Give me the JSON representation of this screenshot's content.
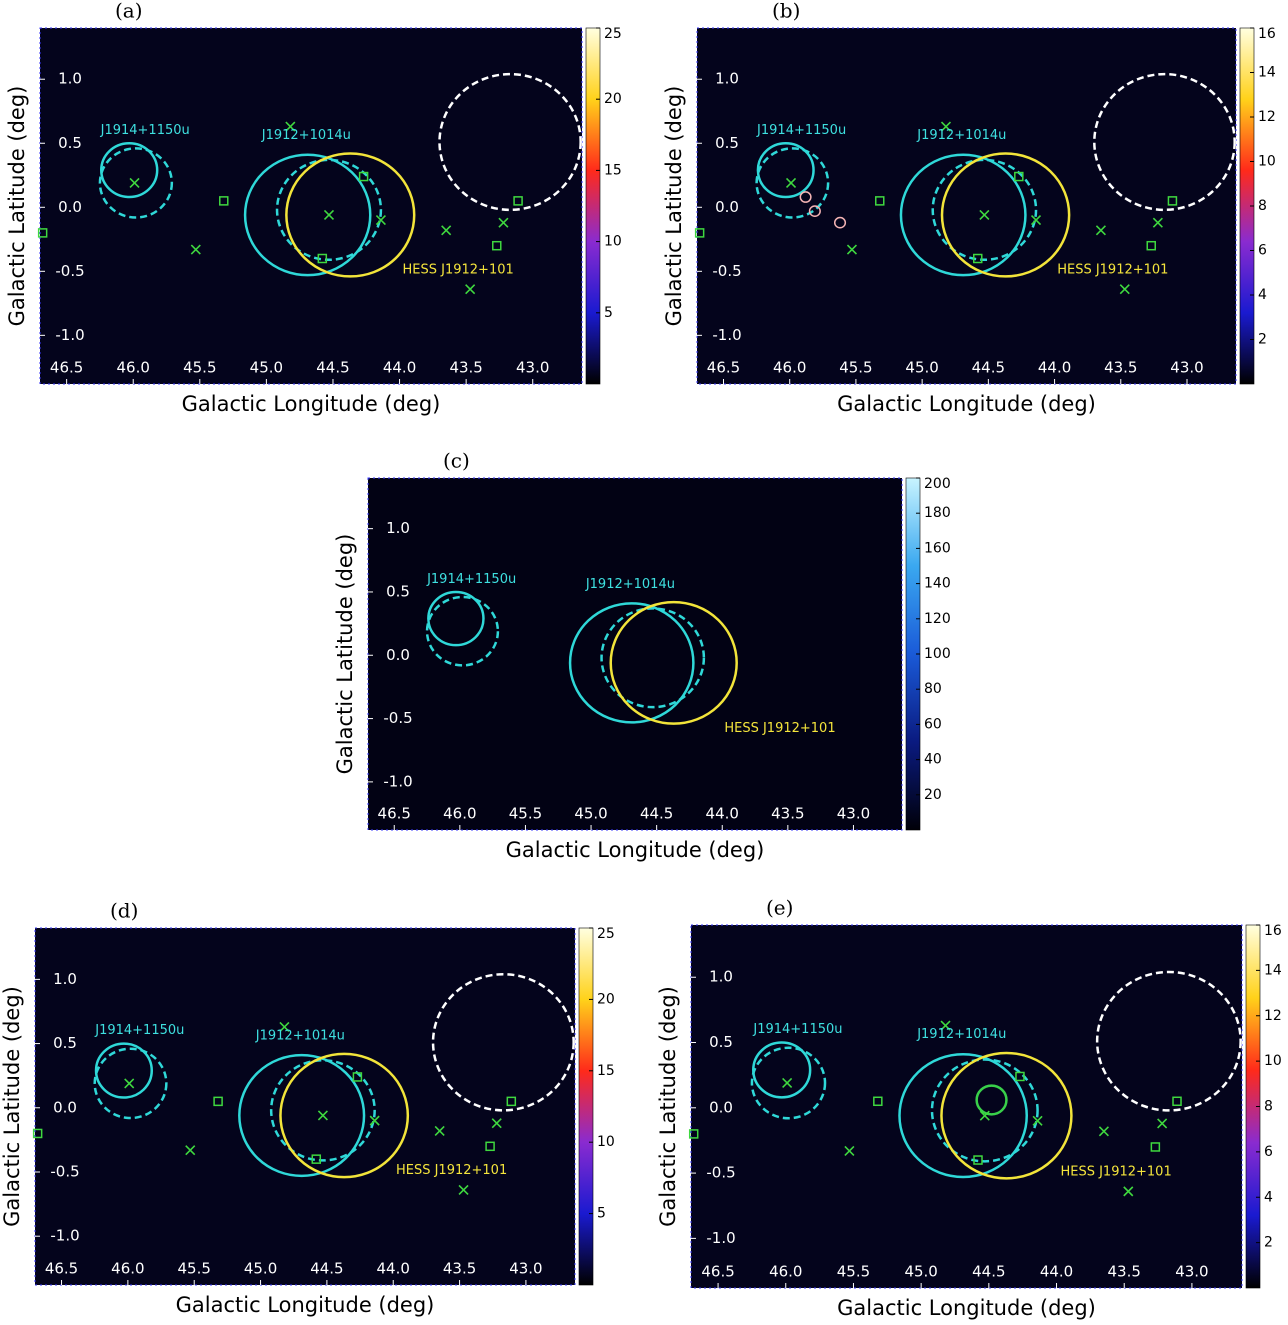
{
  "chart_data": [
    {
      "type": "heatmap",
      "panel_label": "(a)",
      "xlabel": "Galactic Longitude (deg)",
      "ylabel": "Galactic Latitude (deg)",
      "xlim": [
        46.7,
        42.63
      ],
      "ylim": [
        -1.38,
        1.4
      ],
      "xticks": [
        46.5,
        {
          "value": 46,
          "label": "46.0"
        },
        45.5,
        {
          "value": 45,
          "label": "45.0"
        },
        44.5,
        {
          "value": 44,
          "label": "44.0"
        },
        43.5,
        {
          "value": 43,
          "label": "43.0"
        }
      ],
      "yticks": [
        {
          "value": -1,
          "label": "-1.0"
        },
        -0.5,
        {
          "value": 0,
          "label": "0.0"
        },
        0.5,
        {
          "value": 1,
          "label": "1.0"
        }
      ],
      "clim": [
        0,
        25
      ],
      "cticks": [
        5,
        10,
        15,
        20,
        25
      ],
      "colormap": [
        "#000000",
        "#1a1ad0",
        "#8a2bd0",
        "#ff2a1a",
        "#ffd21a",
        "#ffffe0"
      ],
      "background": "#04041c",
      "circles": [
        {
          "l": 46.03,
          "b": 0.29,
          "r": 0.21,
          "color": "#2fd8d8",
          "dashed": false
        },
        {
          "l": 45.98,
          "b": 0.19,
          "r": 0.27,
          "color": "#2fd8d8",
          "dashed": true
        },
        {
          "l": 44.69,
          "b": -0.06,
          "r": 0.47,
          "color": "#2fd8d8",
          "dashed": false
        },
        {
          "l": 44.53,
          "b": -0.02,
          "r": 0.39,
          "color": "#2fd8d8",
          "dashed": true
        },
        {
          "l": 44.37,
          "b": -0.06,
          "r": 0.48,
          "color": "#f2e43a",
          "dashed": false
        },
        {
          "l": 43.17,
          "b": 0.51,
          "r": 0.53,
          "color": "#ffffff",
          "dashed": true
        }
      ],
      "crosses": {
        "l": [
          45.99,
          44.82,
          44.53,
          44.14,
          43.65,
          43.22,
          43.47,
          45.53
        ],
        "b": [
          0.19,
          0.63,
          -0.06,
          -0.1,
          -0.18,
          -0.12,
          -0.64,
          -0.33
        ],
        "color": "#3fd83f"
      },
      "squares": {
        "l": [
          45.32,
          44.27,
          44.58,
          43.11,
          43.27,
          46.68
        ],
        "b": [
          0.05,
          0.24,
          -0.4,
          0.05,
          -0.3,
          -0.2
        ],
        "color": "#3fd83f"
      },
      "annotations": [
        {
          "text": "J1914+1150u",
          "l": 45.91,
          "b": 0.6,
          "color": "#3ee0e0"
        },
        {
          "text": "J1912+1014u",
          "l": 44.7,
          "b": 0.56,
          "color": "#3ee0e0"
        },
        {
          "text": "HESS J1912+101",
          "l": 43.56,
          "b": -0.49,
          "color": "#f5e53c"
        }
      ]
    },
    {
      "type": "heatmap",
      "panel_label": "(b)",
      "xlabel": "Galactic Longitude (deg)",
      "ylabel": "Galactic Latitude (deg)",
      "xlim": [
        46.7,
        42.63
      ],
      "ylim": [
        -1.38,
        1.4
      ],
      "xticks": [
        46.5,
        {
          "value": 46,
          "label": "46.0"
        },
        45.5,
        {
          "value": 45,
          "label": "45.0"
        },
        44.5,
        {
          "value": 44,
          "label": "44.0"
        },
        43.5,
        {
          "value": 43,
          "label": "43.0"
        }
      ],
      "yticks": [
        {
          "value": -1,
          "label": "-1.0"
        },
        -0.5,
        {
          "value": 0,
          "label": "0.0"
        },
        0.5,
        {
          "value": 1,
          "label": "1.0"
        }
      ],
      "clim": [
        0,
        16
      ],
      "cticks": [
        2,
        4,
        6,
        8,
        10,
        12,
        14,
        16
      ],
      "colormap": [
        "#000000",
        "#1a1ad0",
        "#8a2bd0",
        "#ff2a1a",
        "#ffd21a",
        "#ffffe0"
      ],
      "background": "#04041c",
      "circles": [
        {
          "l": 46.03,
          "b": 0.29,
          "r": 0.21,
          "color": "#2fd8d8",
          "dashed": false
        },
        {
          "l": 45.98,
          "b": 0.19,
          "r": 0.27,
          "color": "#2fd8d8",
          "dashed": true
        },
        {
          "l": 44.69,
          "b": -0.06,
          "r": 0.47,
          "color": "#2fd8d8",
          "dashed": false
        },
        {
          "l": 44.53,
          "b": -0.02,
          "r": 0.39,
          "color": "#2fd8d8",
          "dashed": true
        },
        {
          "l": 44.37,
          "b": -0.06,
          "r": 0.48,
          "color": "#f2e43a",
          "dashed": false
        },
        {
          "l": 43.17,
          "b": 0.51,
          "r": 0.53,
          "color": "#ffffff",
          "dashed": true
        },
        {
          "l": 45.88,
          "b": 0.08,
          "r": 0.04,
          "color": "#f4b4b4",
          "dashed": false
        },
        {
          "l": 45.81,
          "b": -0.03,
          "r": 0.04,
          "color": "#f4b4b4",
          "dashed": false
        },
        {
          "l": 45.62,
          "b": -0.12,
          "r": 0.04,
          "color": "#f4b4b4",
          "dashed": false
        }
      ],
      "crosses": {
        "l": [
          45.99,
          44.82,
          44.53,
          44.14,
          43.65,
          43.22,
          43.47,
          45.53
        ],
        "b": [
          0.19,
          0.63,
          -0.06,
          -0.1,
          -0.18,
          -0.12,
          -0.64,
          -0.33
        ],
        "color": "#3fd83f"
      },
      "squares": {
        "l": [
          45.32,
          44.27,
          44.58,
          43.11,
          43.27,
          46.68
        ],
        "b": [
          0.05,
          0.24,
          -0.4,
          0.05,
          -0.3,
          -0.2
        ],
        "color": "#3fd83f"
      },
      "annotations": [
        {
          "text": "J1914+1150u",
          "l": 45.91,
          "b": 0.6,
          "color": "#3ee0e0"
        },
        {
          "text": "J1912+1014u",
          "l": 44.7,
          "b": 0.56,
          "color": "#3ee0e0"
        },
        {
          "text": "HESS J1912+101",
          "l": 43.56,
          "b": -0.49,
          "color": "#f5e53c"
        }
      ]
    },
    {
      "type": "heatmap",
      "panel_label": "(c)",
      "xlabel": "Galactic Longitude (deg)",
      "ylabel": "Galactic Latitude (deg)",
      "xlim": [
        46.7,
        42.63
      ],
      "ylim": [
        -1.38,
        1.4
      ],
      "xticks": [
        46.5,
        {
          "value": 46,
          "label": "46.0"
        },
        45.5,
        {
          "value": 45,
          "label": "45.0"
        },
        44.5,
        {
          "value": 44,
          "label": "44.0"
        },
        43.5,
        {
          "value": 43,
          "label": "43.0"
        }
      ],
      "yticks": [
        {
          "value": -1,
          "label": "-1.0"
        },
        -0.5,
        {
          "value": 0,
          "label": "0.0"
        },
        0.5,
        {
          "value": 1,
          "label": "1.0"
        }
      ],
      "clim": [
        0,
        200
      ],
      "cticks": [
        20,
        40,
        60,
        80,
        100,
        120,
        140,
        160,
        180,
        200
      ],
      "colormap": [
        "#000008",
        "#0a1a80",
        "#1a5ad8",
        "#3aa8f0",
        "#c8f4ff"
      ],
      "background": "#020214",
      "circles": [
        {
          "l": 46.03,
          "b": 0.29,
          "r": 0.21,
          "color": "#2fd8d8",
          "dashed": false
        },
        {
          "l": 45.98,
          "b": 0.19,
          "r": 0.27,
          "color": "#2fd8d8",
          "dashed": true
        },
        {
          "l": 44.69,
          "b": -0.06,
          "r": 0.47,
          "color": "#2fd8d8",
          "dashed": false
        },
        {
          "l": 44.53,
          "b": -0.02,
          "r": 0.39,
          "color": "#2fd8d8",
          "dashed": true
        },
        {
          "l": 44.37,
          "b": -0.06,
          "r": 0.48,
          "color": "#f2e43a",
          "dashed": false
        }
      ],
      "annotations": [
        {
          "text": "J1914+1150u",
          "l": 45.91,
          "b": 0.6,
          "color": "#3ee0e0"
        },
        {
          "text": "J1912+1014u",
          "l": 44.7,
          "b": 0.56,
          "color": "#3ee0e0"
        },
        {
          "text": "HESS J1912+101",
          "l": 43.56,
          "b": -0.58,
          "color": "#f5e53c"
        }
      ]
    },
    {
      "type": "heatmap",
      "panel_label": "(d)",
      "xlabel": "Galactic Longitude (deg)",
      "ylabel": "Galactic Latitude (deg)",
      "xlim": [
        46.7,
        42.63
      ],
      "ylim": [
        -1.38,
        1.4
      ],
      "xticks": [
        46.5,
        {
          "value": 46,
          "label": "46.0"
        },
        45.5,
        {
          "value": 45,
          "label": "45.0"
        },
        44.5,
        {
          "value": 44,
          "label": "44.0"
        },
        43.5,
        {
          "value": 43,
          "label": "43.0"
        }
      ],
      "yticks": [
        {
          "value": -1,
          "label": "-1.0"
        },
        -0.5,
        {
          "value": 0,
          "label": "0.0"
        },
        0.5,
        {
          "value": 1,
          "label": "1.0"
        }
      ],
      "clim": [
        0,
        25
      ],
      "cticks": [
        5,
        10,
        15,
        20,
        25
      ],
      "colormap": [
        "#000000",
        "#1a1ad0",
        "#8a2bd0",
        "#ff2a1a",
        "#ffd21a",
        "#ffffe0"
      ],
      "background": "#04041c",
      "circles": [
        {
          "l": 46.03,
          "b": 0.29,
          "r": 0.21,
          "color": "#2fd8d8",
          "dashed": false
        },
        {
          "l": 45.98,
          "b": 0.19,
          "r": 0.27,
          "color": "#2fd8d8",
          "dashed": true
        },
        {
          "l": 44.69,
          "b": -0.06,
          "r": 0.47,
          "color": "#2fd8d8",
          "dashed": false
        },
        {
          "l": 44.53,
          "b": -0.02,
          "r": 0.39,
          "color": "#2fd8d8",
          "dashed": true
        },
        {
          "l": 44.37,
          "b": -0.06,
          "r": 0.48,
          "color": "#f2e43a",
          "dashed": false
        },
        {
          "l": 43.17,
          "b": 0.51,
          "r": 0.53,
          "color": "#ffffff",
          "dashed": true
        }
      ],
      "crosses": {
        "l": [
          45.99,
          44.82,
          44.53,
          44.14,
          43.65,
          43.22,
          43.47,
          45.53
        ],
        "b": [
          0.19,
          0.63,
          -0.06,
          -0.1,
          -0.18,
          -0.12,
          -0.64,
          -0.33
        ],
        "color": "#3fd83f"
      },
      "squares": {
        "l": [
          45.32,
          44.27,
          44.58,
          43.11,
          43.27,
          46.68
        ],
        "b": [
          0.05,
          0.24,
          -0.4,
          0.05,
          -0.3,
          -0.2
        ],
        "color": "#3fd83f"
      },
      "annotations": [
        {
          "text": "J1914+1150u",
          "l": 45.91,
          "b": 0.6,
          "color": "#3ee0e0"
        },
        {
          "text": "J1912+1014u",
          "l": 44.7,
          "b": 0.56,
          "color": "#3ee0e0"
        },
        {
          "text": "HESS J1912+101",
          "l": 43.56,
          "b": -0.49,
          "color": "#f5e53c"
        }
      ]
    },
    {
      "type": "heatmap",
      "panel_label": "(e)",
      "xlabel": "Galactic Longitude (deg)",
      "ylabel": "Galactic Latitude (deg)",
      "xlim": [
        46.7,
        42.63
      ],
      "ylim": [
        -1.38,
        1.4
      ],
      "xticks": [
        46.5,
        {
          "value": 46,
          "label": "46.0"
        },
        45.5,
        {
          "value": 45,
          "label": "45.0"
        },
        44.5,
        {
          "value": 44,
          "label": "44.0"
        },
        43.5,
        {
          "value": 43,
          "label": "43.0"
        }
      ],
      "yticks": [
        {
          "value": -1,
          "label": "-1.0"
        },
        -0.5,
        {
          "value": 0,
          "label": "0.0"
        },
        0.5,
        {
          "value": 1,
          "label": "1.0"
        }
      ],
      "clim": [
        0,
        16
      ],
      "cticks": [
        2,
        4,
        6,
        8,
        10,
        12,
        14,
        16
      ],
      "colormap": [
        "#000000",
        "#1a1ad0",
        "#8a2bd0",
        "#ff2a1a",
        "#ffd21a",
        "#ffffe0"
      ],
      "background": "#04041c",
      "circles": [
        {
          "l": 46.03,
          "b": 0.29,
          "r": 0.21,
          "color": "#2fd8d8",
          "dashed": false
        },
        {
          "l": 45.98,
          "b": 0.19,
          "r": 0.27,
          "color": "#2fd8d8",
          "dashed": true
        },
        {
          "l": 44.69,
          "b": -0.06,
          "r": 0.47,
          "color": "#2fd8d8",
          "dashed": false
        },
        {
          "l": 44.53,
          "b": -0.02,
          "r": 0.39,
          "color": "#2fd8d8",
          "dashed": true
        },
        {
          "l": 44.37,
          "b": -0.06,
          "r": 0.48,
          "color": "#f2e43a",
          "dashed": false
        },
        {
          "l": 43.17,
          "b": 0.51,
          "r": 0.53,
          "color": "#ffffff",
          "dashed": true
        },
        {
          "l": 44.48,
          "b": 0.06,
          "r": 0.11,
          "color": "#39d04a",
          "dashed": false
        }
      ],
      "crosses": {
        "l": [
          45.99,
          44.82,
          44.53,
          44.14,
          43.65,
          43.22,
          43.47,
          45.53
        ],
        "b": [
          0.19,
          0.63,
          -0.06,
          -0.1,
          -0.18,
          -0.12,
          -0.64,
          -0.33
        ],
        "color": "#3fd83f"
      },
      "squares": {
        "l": [
          45.32,
          44.27,
          44.58,
          43.11,
          43.27,
          46.68
        ],
        "b": [
          0.05,
          0.24,
          -0.4,
          0.05,
          -0.3,
          -0.2
        ],
        "color": "#3fd83f"
      },
      "annotations": [
        {
          "text": "J1914+1150u",
          "l": 45.91,
          "b": 0.6,
          "color": "#3ee0e0"
        },
        {
          "text": "J1912+1014u",
          "l": 44.7,
          "b": 0.56,
          "color": "#3ee0e0"
        },
        {
          "text": "HESS J1912+101",
          "l": 43.56,
          "b": -0.49,
          "color": "#f5e53c"
        }
      ]
    }
  ]
}
